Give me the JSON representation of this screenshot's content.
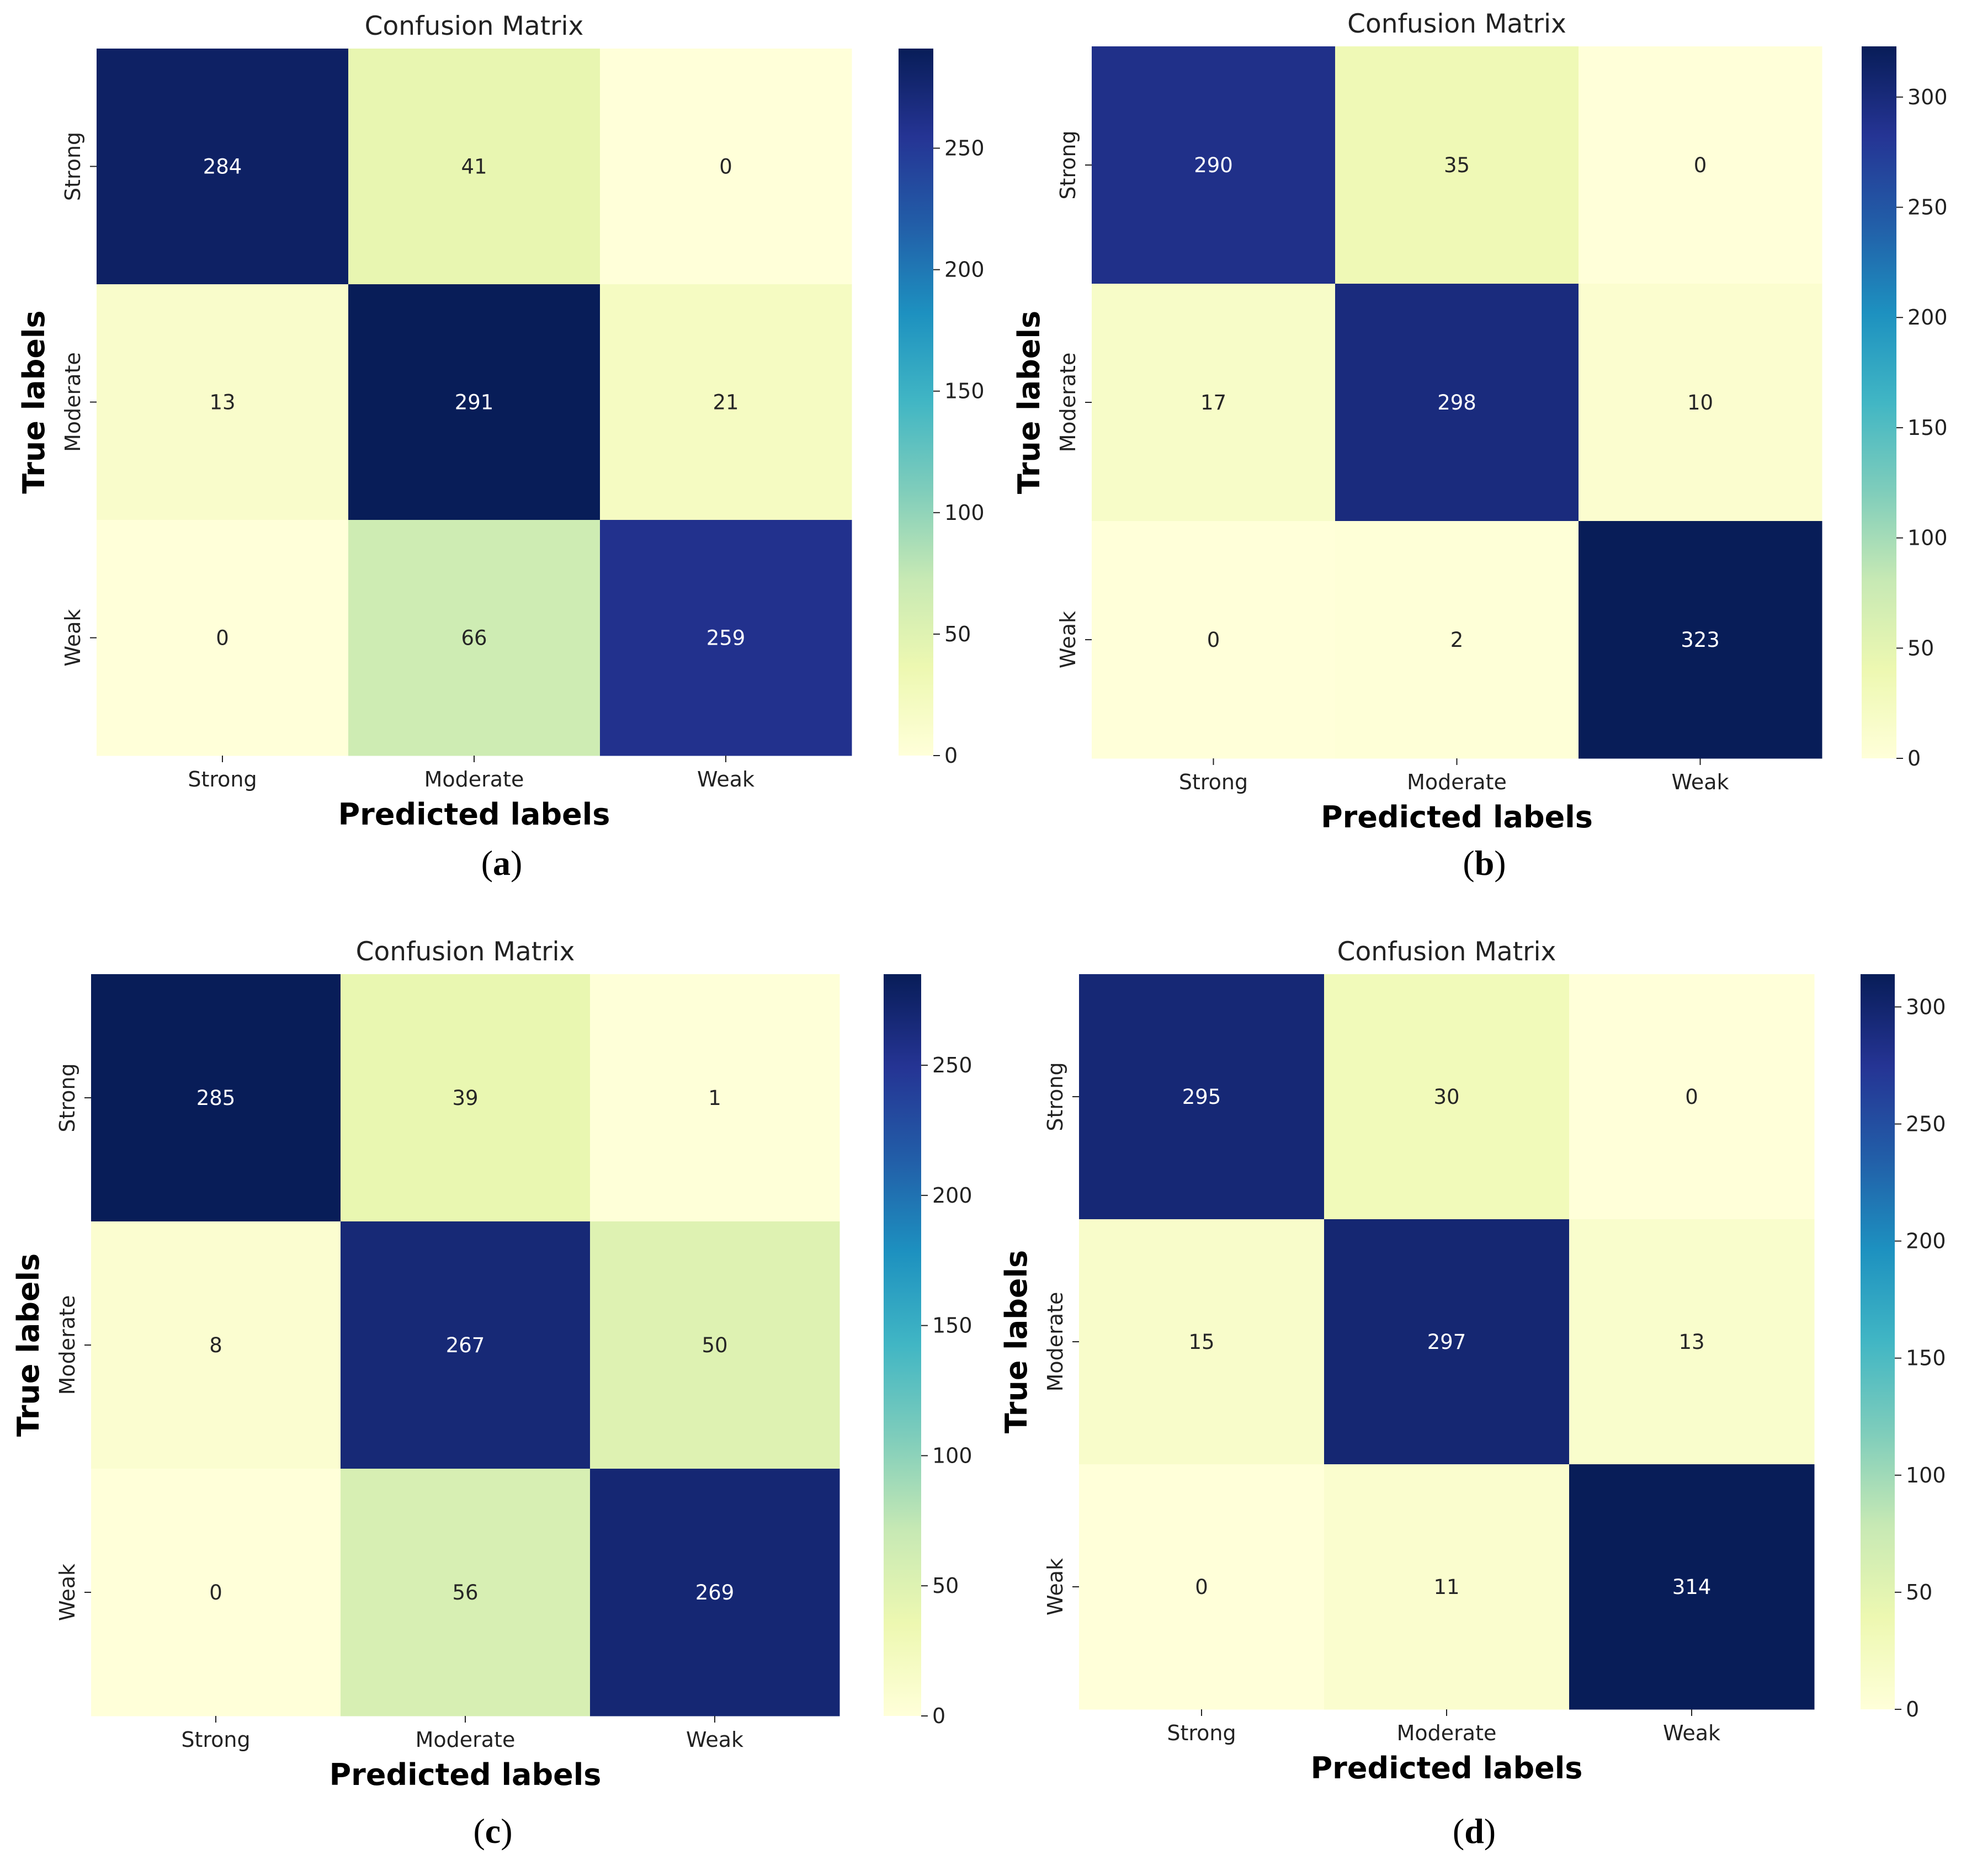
{
  "colormap": {
    "name": "YlGnBu",
    "stops": [
      "#ffffd9",
      "#edf8b1",
      "#c7e9b4",
      "#7fcdbb",
      "#41b6c4",
      "#1d91c0",
      "#225ea8",
      "#253494",
      "#081d58"
    ]
  },
  "chart_data": [
    {
      "type": "heatmap",
      "panel": "(a)",
      "title": "Confusion Matrix",
      "xlabel": "Predicted labels",
      "ylabel": "True labels",
      "x_categories": [
        "Strong",
        "Moderate",
        "Weak"
      ],
      "y_categories": [
        "Strong",
        "Moderate",
        "Weak"
      ],
      "values": [
        [
          284,
          41,
          0
        ],
        [
          13,
          291,
          21
        ],
        [
          0,
          66,
          259
        ]
      ],
      "colorbar": {
        "min": 0,
        "max": 291,
        "ticks": [
          0,
          50,
          100,
          150,
          200,
          250
        ]
      }
    },
    {
      "type": "heatmap",
      "panel": "(b)",
      "title": "Confusion Matrix",
      "xlabel": "Predicted labels",
      "ylabel": "True labels",
      "x_categories": [
        "Strong",
        "Moderate",
        "Weak"
      ],
      "y_categories": [
        "Strong",
        "Moderate",
        "Weak"
      ],
      "values": [
        [
          290,
          35,
          0
        ],
        [
          17,
          298,
          10
        ],
        [
          0,
          2,
          323
        ]
      ],
      "colorbar": {
        "min": 0,
        "max": 323,
        "ticks": [
          0,
          50,
          100,
          150,
          200,
          250,
          300
        ]
      }
    },
    {
      "type": "heatmap",
      "panel": "(c)",
      "title": "Confusion Matrix",
      "xlabel": "Predicted labels",
      "ylabel": "True labels",
      "x_categories": [
        "Strong",
        "Moderate",
        "Weak"
      ],
      "y_categories": [
        "Strong",
        "Moderate",
        "Weak"
      ],
      "values": [
        [
          285,
          39,
          1
        ],
        [
          8,
          267,
          50
        ],
        [
          0,
          56,
          269
        ]
      ],
      "colorbar": {
        "min": 0,
        "max": 285,
        "ticks": [
          0,
          50,
          100,
          150,
          200,
          250
        ]
      }
    },
    {
      "type": "heatmap",
      "panel": "(d)",
      "title": "Confusion Matrix",
      "xlabel": "Predicted labels",
      "ylabel": "True labels",
      "x_categories": [
        "Strong",
        "Moderate",
        "Weak"
      ],
      "y_categories": [
        "Strong",
        "Moderate",
        "Weak"
      ],
      "values": [
        [
          295,
          30,
          0
        ],
        [
          15,
          297,
          13
        ],
        [
          0,
          11,
          314
        ]
      ],
      "colorbar": {
        "min": 0,
        "max": 314,
        "ticks": [
          0,
          50,
          100,
          150,
          200,
          250,
          300
        ]
      }
    }
  ]
}
